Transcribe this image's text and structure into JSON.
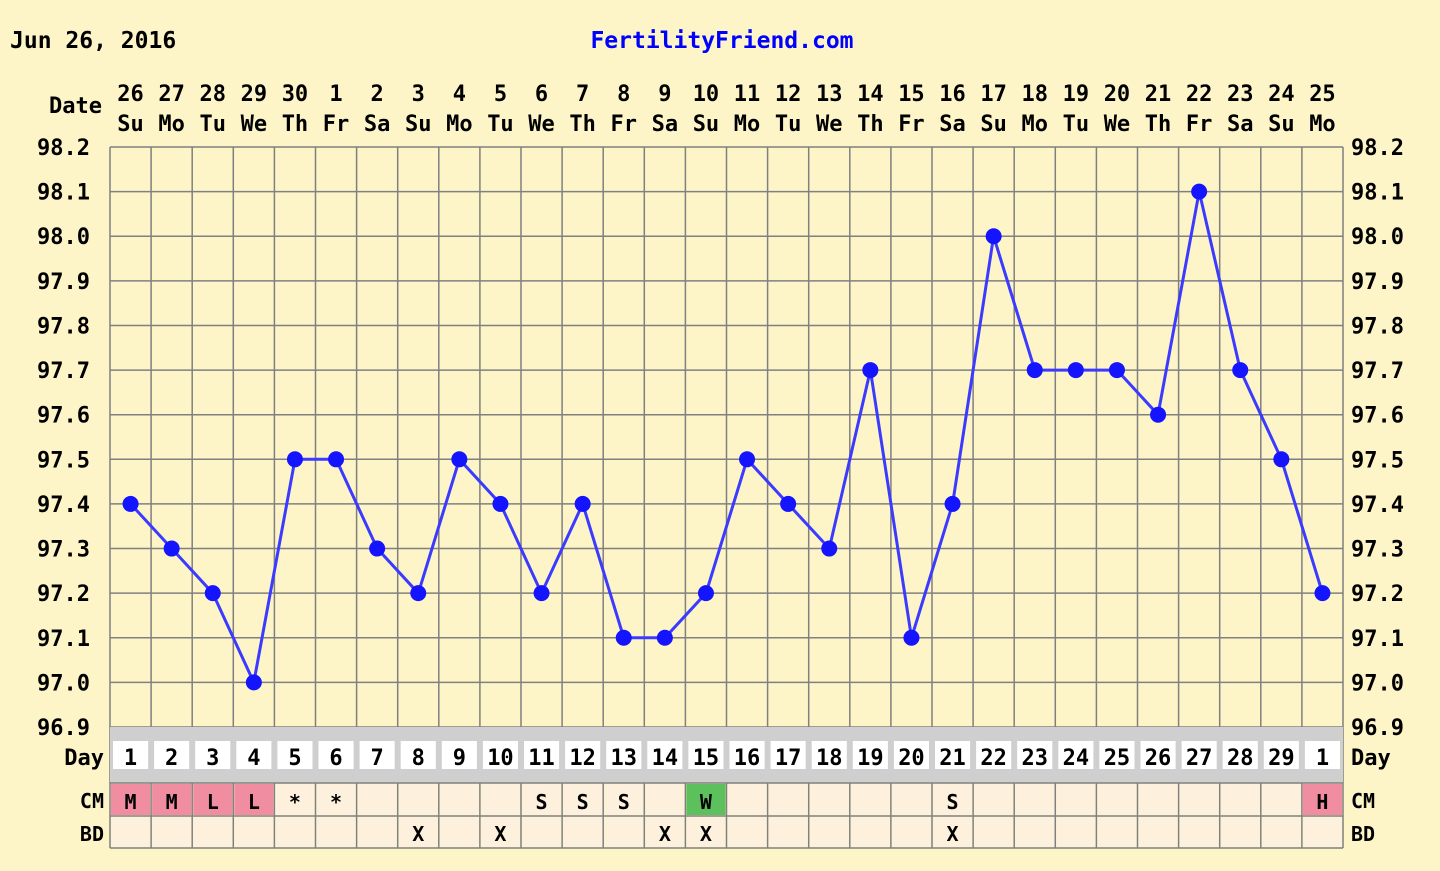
{
  "header": {
    "date": "Jun 26, 2016",
    "site": "FertilityFriend.com"
  },
  "labels": {
    "date_label": "Date",
    "day_label": "Day",
    "cm_label": "CM",
    "bd_label": "BD"
  },
  "colors": {
    "background": "#fdf4c7",
    "outer_border": "#fdf4c7",
    "grid": "#808080",
    "line": "#3b3bff",
    "point": "#1414ff",
    "site_link": "#0000ff",
    "pink_cell": "#f08da0",
    "green_cell": "#5cc05c",
    "row_band": "#cfcfcf",
    "empty_cell": "#fdf1dd"
  },
  "chart_data": {
    "type": "line",
    "title": "",
    "xlabel": "",
    "ylabel": "",
    "ylim": [
      96.9,
      98.2
    ],
    "y_ticks": [
      "98.2",
      "98.1",
      "98.0",
      "97.9",
      "97.8",
      "97.7",
      "97.6",
      "97.5",
      "97.4",
      "97.3",
      "97.2",
      "97.1",
      "97.0",
      "96.9"
    ],
    "dates": [
      "26",
      "27",
      "28",
      "29",
      "30",
      "1",
      "2",
      "3",
      "4",
      "5",
      "6",
      "7",
      "8",
      "9",
      "10",
      "11",
      "12",
      "13",
      "14",
      "15",
      "16",
      "17",
      "18",
      "19",
      "20",
      "21",
      "22",
      "23",
      "24",
      "25"
    ],
    "weekdays": [
      "Su",
      "Mo",
      "Tu",
      "We",
      "Th",
      "Fr",
      "Sa",
      "Su",
      "Mo",
      "Tu",
      "We",
      "Th",
      "Fr",
      "Sa",
      "Su",
      "Mo",
      "Tu",
      "We",
      "Th",
      "Fr",
      "Sa",
      "Su",
      "Mo",
      "Tu",
      "We",
      "Th",
      "Fr",
      "Sa",
      "Su",
      "Mo"
    ],
    "cycle_days": [
      "1",
      "2",
      "3",
      "4",
      "5",
      "6",
      "7",
      "8",
      "9",
      "10",
      "11",
      "12",
      "13",
      "14",
      "15",
      "16",
      "17",
      "18",
      "19",
      "20",
      "21",
      "22",
      "23",
      "24",
      "25",
      "26",
      "27",
      "28",
      "29",
      "1"
    ],
    "series": [
      {
        "values": [
          97.4,
          97.3,
          97.2,
          97.0,
          97.5,
          97.5,
          97.3,
          97.2,
          97.5,
          97.4,
          97.2,
          97.4,
          97.1,
          97.1,
          97.2,
          97.5,
          97.4,
          97.3,
          97.7,
          97.1,
          97.4,
          98.0,
          97.7,
          97.7,
          97.7,
          97.6,
          98.1,
          97.7,
          97.5,
          97.2
        ]
      }
    ],
    "cm": [
      "M",
      "M",
      "L",
      "L",
      "*",
      "*",
      "",
      "",
      "",
      "",
      "S",
      "S",
      "S",
      "",
      "W",
      "",
      "",
      "",
      "",
      "",
      "S",
      "",
      "",
      "",
      "",
      "",
      "",
      "",
      "",
      "H"
    ],
    "cm_colors": [
      "pink",
      "pink",
      "pink",
      "pink",
      "",
      "",
      "",
      "",
      "",
      "",
      "",
      "",
      "",
      "",
      "green",
      "",
      "",
      "",
      "",
      "",
      "",
      "",
      "",
      "",
      "",
      "",
      "",
      "",
      "",
      "pink"
    ],
    "bd": [
      "",
      "",
      "",
      "",
      "",
      "",
      "",
      "X",
      "",
      "X",
      "",
      "",
      "",
      "X",
      "X",
      "",
      "",
      "",
      "",
      "",
      "X",
      "",
      "",
      "",
      "",
      "",
      "",
      "",
      "",
      ""
    ],
    "grid": true,
    "legend": "none"
  }
}
